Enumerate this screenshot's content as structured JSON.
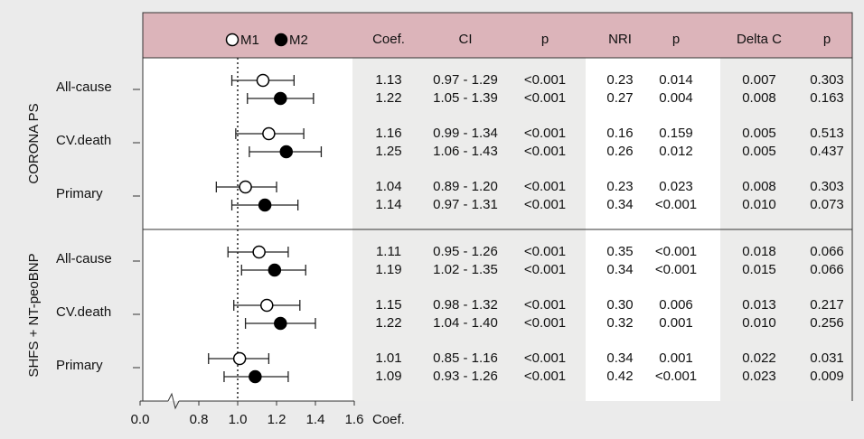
{
  "chart_data": {
    "type": "forest",
    "series": [
      {
        "name": "M1",
        "color": "#ffffff"
      },
      {
        "name": "M2",
        "color": "#000000"
      }
    ],
    "columns": [
      "Coef.",
      "CI",
      "p",
      "NRI",
      "p",
      "Delta C",
      "p"
    ],
    "xlabel": "Coef.",
    "xlim": [
      0,
      1.6
    ],
    "xticks": [
      {
        "value": 0,
        "label": "0.0"
      },
      0.8,
      {
        "value": 1,
        "label": "1.0"
      },
      1.2,
      1.4,
      1.6
    ],
    "ref_line": 1,
    "groups": [
      {
        "name": "CORONA PS",
        "rows": [
          {
            "label": "All-cause",
            "models": [
              {
                "coef": 1.13,
                "ci": [
                  0.97,
                  1.29
                ],
                "ci_label": "0.97 - 1.29",
                "p": "<0.001",
                "nri": "0.23",
                "nri_p": "0.014",
                "delta_c": "0.007",
                "delta_c_p": "0.303"
              },
              {
                "coef": 1.22,
                "ci": [
                  1.05,
                  1.39
                ],
                "ci_label": "1.05 - 1.39",
                "p": "<0.001",
                "nri": "0.27",
                "nri_p": "0.004",
                "delta_c": "0.008",
                "delta_c_p": "0.163"
              }
            ]
          },
          {
            "label": "CV.death",
            "models": [
              {
                "coef": 1.16,
                "ci": [
                  0.99,
                  1.34
                ],
                "ci_label": "0.99 - 1.34",
                "p": "<0.001",
                "nri": "0.16",
                "nri_p": "0.159",
                "delta_c": "0.005",
                "delta_c_p": "0.513"
              },
              {
                "coef": 1.25,
                "ci": [
                  1.06,
                  1.43
                ],
                "ci_label": "1.06 - 1.43",
                "p": "<0.001",
                "nri": "0.26",
                "nri_p": "0.012",
                "delta_c": "0.005",
                "delta_c_p": "0.437"
              }
            ]
          },
          {
            "label": "Primary",
            "models": [
              {
                "coef": 1.04,
                "ci": [
                  0.89,
                  1.2
                ],
                "ci_label": "0.89 - 1.20",
                "p": "<0.001",
                "nri": "0.23",
                "nri_p": "0.023",
                "delta_c": "0.008",
                "delta_c_p": "0.303"
              },
              {
                "coef": 1.14,
                "ci": [
                  0.97,
                  1.31
                ],
                "ci_label": "0.97 - 1.31",
                "p": "<0.001",
                "nri": "0.34",
                "nri_p": "<0.001",
                "delta_c": "0.010",
                "delta_c_p": "0.073"
              }
            ]
          }
        ]
      },
      {
        "name": "SHFS + NT-peoBNP",
        "rows": [
          {
            "label": "All-cause",
            "models": [
              {
                "coef": 1.11,
                "ci": [
                  0.95,
                  1.26
                ],
                "ci_label": "0.95 - 1.26",
                "p": "<0.001",
                "nri": "0.35",
                "nri_p": "<0.001",
                "delta_c": "0.018",
                "delta_c_p": "0.066"
              },
              {
                "coef": 1.19,
                "ci": [
                  1.02,
                  1.35
                ],
                "ci_label": "1.02 - 1.35",
                "p": "<0.001",
                "nri": "0.34",
                "nri_p": "<0.001",
                "delta_c": "0.015",
                "delta_c_p": "0.066"
              }
            ]
          },
          {
            "label": "CV.death",
            "models": [
              {
                "coef": 1.15,
                "ci": [
                  0.98,
                  1.32
                ],
                "ci_label": "0.98 - 1.32",
                "p": "<0.001",
                "nri": "0.30",
                "nri_p": "0.006",
                "delta_c": "0.013",
                "delta_c_p": "0.217"
              },
              {
                "coef": 1.22,
                "ci": [
                  1.04,
                  1.4
                ],
                "ci_label": "1.04 - 1.40",
                "p": "<0.001",
                "nri": "0.32",
                "nri_p": "0.001",
                "delta_c": "0.010",
                "delta_c_p": "0.256"
              }
            ]
          },
          {
            "label": "Primary",
            "models": [
              {
                "coef": 1.01,
                "ci": [
                  0.85,
                  1.16
                ],
                "ci_label": "0.85 - 1.16",
                "p": "<0.001",
                "nri": "0.34",
                "nri_p": "0.001",
                "delta_c": "0.022",
                "delta_c_p": "0.031"
              },
              {
                "coef": 1.09,
                "ci": [
                  0.93,
                  1.26
                ],
                "ci_label": "0.93 - 1.26",
                "p": "<0.001",
                "nri": "0.42",
                "nri_p": "<0.001",
                "delta_c": "0.023",
                "delta_c_p": "0.009"
              }
            ]
          }
        ]
      }
    ]
  }
}
